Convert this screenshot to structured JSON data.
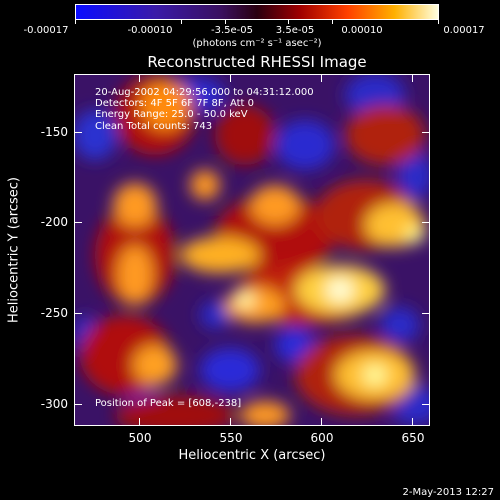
{
  "colorbar": {
    "ticks": [
      "-0.00017",
      "-0.00010",
      "-3.5e-05",
      "3.5e-05",
      "0.00010",
      "0.00017"
    ],
    "unit": "(photons cm⁻² s⁻¹ asec⁻²)"
  },
  "title": "Reconstructed RHESSI Image",
  "annotations": {
    "time": "20-Aug-2002 04:29:56.000 to 04:31:12.000",
    "detectors": "Detectors: 4F 5F 6F 7F 8F, Att 0",
    "energy": "Energy Range: 25.0 - 50.0 keV",
    "algorithm": "Clean     Total counts: 743",
    "peak": "Position of Peak = [608,-238]"
  },
  "x_axis": {
    "label": "Heliocentric X (arcsec)",
    "ticks": [
      "500",
      "550",
      "600",
      "650"
    ]
  },
  "y_axis": {
    "label": "Heliocentric Y (arcsec)",
    "ticks": [
      "-150",
      "-200",
      "-250",
      "-300"
    ]
  },
  "timestamp": "2-May-2013 12:27",
  "colors": {
    "background": "#000000",
    "text": "#ffffff"
  }
}
